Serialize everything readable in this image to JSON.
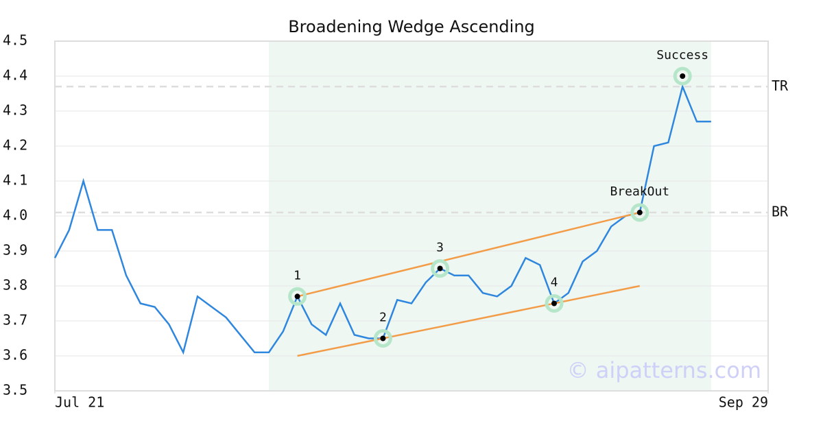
{
  "chart_data": {
    "type": "line",
    "title": "Broadening Wedge Ascending",
    "x": [
      0,
      1,
      2,
      3,
      4,
      5,
      6,
      7,
      8,
      9,
      10,
      11,
      12,
      13,
      14,
      15,
      16,
      17,
      18,
      19,
      20,
      21,
      22,
      23,
      24,
      25,
      26,
      27,
      28,
      29,
      30,
      31,
      32,
      33,
      34,
      35,
      36,
      37,
      38,
      39,
      40,
      41,
      42,
      43,
      44,
      45,
      46
    ],
    "series": [
      {
        "color": "#2e86de",
        "values": [
          3.88,
          3.96,
          4.1,
          3.96,
          3.96,
          3.83,
          3.75,
          3.74,
          3.69,
          3.61,
          3.77,
          3.74,
          3.71,
          3.66,
          3.61,
          3.61,
          3.67,
          3.77,
          3.69,
          3.66,
          3.75,
          3.66,
          3.65,
          3.65,
          3.76,
          3.75,
          3.81,
          3.85,
          3.83,
          3.83,
          3.78,
          3.77,
          3.8,
          3.88,
          3.86,
          3.75,
          3.78,
          3.87,
          3.9,
          3.97,
          4.0,
          4.01,
          4.2,
          4.21,
          4.37,
          4.27,
          4.27
        ]
      }
    ],
    "xlim": [
      0,
      50
    ],
    "xticks": [
      {
        "value": 0,
        "label": "Jul 21"
      },
      {
        "value": 50,
        "label": "Sep 29"
      }
    ],
    "ylim": [
      3.5,
      4.5
    ],
    "yticks": [
      3.5,
      3.6,
      3.7,
      3.8,
      3.9,
      {
        "value": 4,
        "label": "4.0"
      },
      4.1,
      4.2,
      4.3,
      4.4,
      4.5
    ],
    "grid": true,
    "highlight_range": [
      15,
      46
    ],
    "highlight_color": "#eef7f2",
    "trendlines": [
      {
        "color": "#f39c48",
        "x": [
          17,
          41
        ],
        "y": [
          3.77,
          4.01
        ]
      },
      {
        "color": "#f39c48",
        "x": [
          17,
          41
        ],
        "y": [
          3.6,
          3.8
        ]
      }
    ],
    "points": [
      {
        "label": "1",
        "x": 17,
        "y": 3.77
      },
      {
        "label": "2",
        "x": 23,
        "y": 3.65
      },
      {
        "label": "3",
        "x": 27,
        "y": 3.85
      },
      {
        "label": "4",
        "x": 35,
        "y": 3.75
      },
      {
        "label": "BreakOut",
        "x": 41,
        "y": 4.01
      },
      {
        "label": "Success",
        "x": 44,
        "y": 4.4
      }
    ],
    "levels": [
      {
        "label": "TR",
        "value": 4.37
      },
      {
        "label": "BR",
        "value": 4.01
      }
    ],
    "watermark": "© aipatterns.com"
  }
}
